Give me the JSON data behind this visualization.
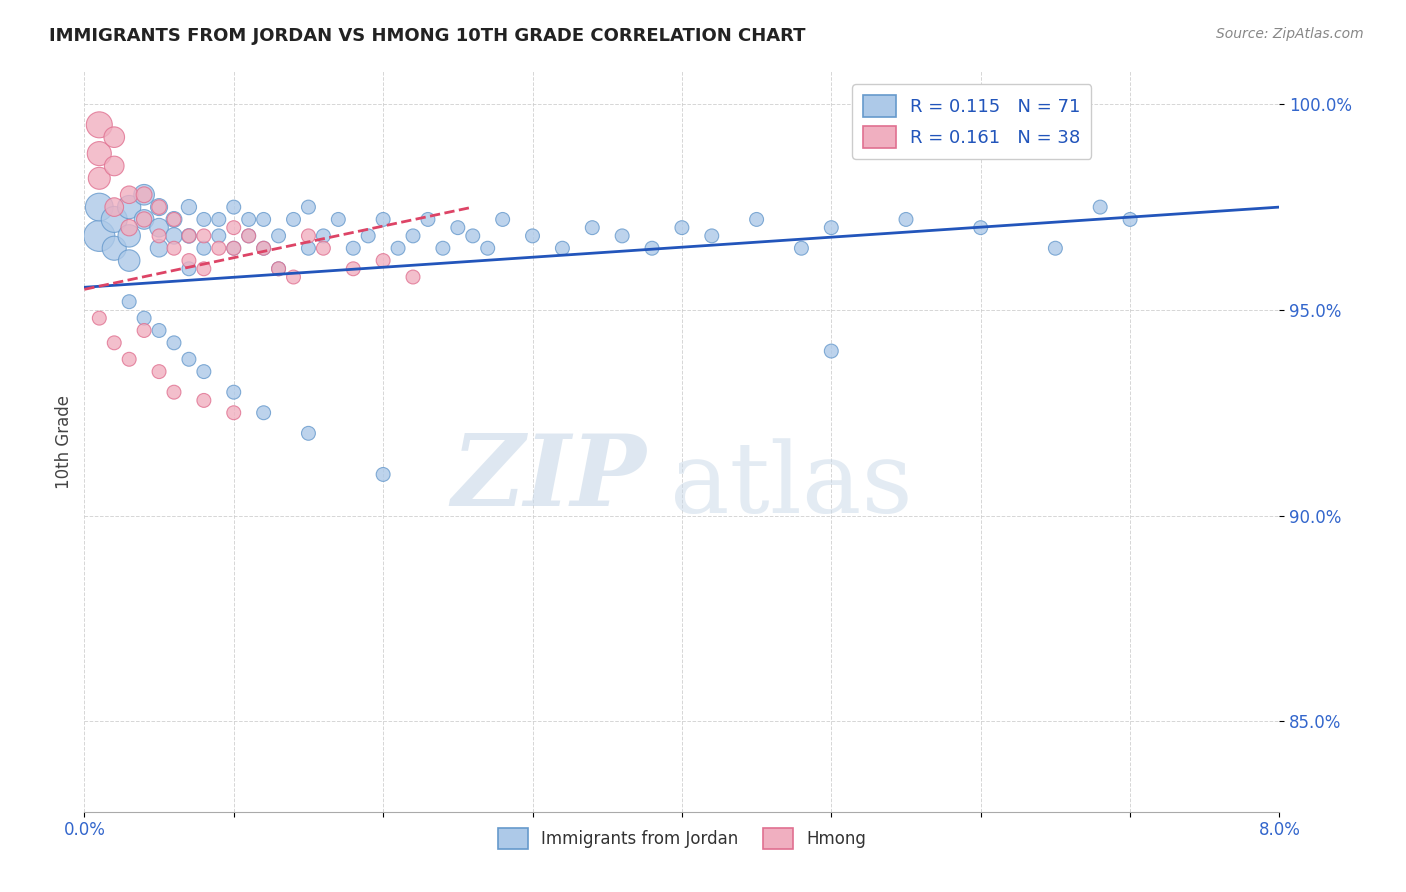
{
  "title": "IMMIGRANTS FROM JORDAN VS HMONG 10TH GRADE CORRELATION CHART",
  "source": "Source: ZipAtlas.com",
  "ylabel": "10th Grade",
  "xmin": 0.0,
  "xmax": 0.08,
  "ymin": 0.828,
  "ymax": 1.008,
  "yticks": [
    0.85,
    0.9,
    0.95,
    1.0
  ],
  "ytick_labels": [
    "85.0%",
    "90.0%",
    "95.0%",
    "100.0%"
  ],
  "grid_color": "#cccccc",
  "jordan_color": "#adc9e8",
  "jordan_edge": "#6699cc",
  "hmong_color": "#f0afc0",
  "hmong_edge": "#e07090",
  "jordan_line_color": "#2255bb",
  "hmong_line_color": "#dd4466",
  "legend_color": "#2255bb",
  "tick_color": "#3366cc",
  "title_color": "#222222",
  "watermark_zip": "ZIP",
  "watermark_atlas": "atlas",
  "watermark_color": "#c8d8e8",
  "jordan_x": [
    0.001,
    0.001,
    0.002,
    0.002,
    0.003,
    0.003,
    0.003,
    0.004,
    0.004,
    0.005,
    0.005,
    0.005,
    0.006,
    0.006,
    0.007,
    0.007,
    0.007,
    0.008,
    0.008,
    0.009,
    0.009,
    0.01,
    0.01,
    0.011,
    0.011,
    0.012,
    0.012,
    0.013,
    0.013,
    0.014,
    0.015,
    0.015,
    0.016,
    0.017,
    0.018,
    0.019,
    0.02,
    0.021,
    0.022,
    0.023,
    0.024,
    0.025,
    0.026,
    0.027,
    0.028,
    0.03,
    0.032,
    0.034,
    0.036,
    0.038,
    0.04,
    0.042,
    0.045,
    0.048,
    0.05,
    0.055,
    0.06,
    0.065,
    0.068,
    0.07,
    0.003,
    0.004,
    0.005,
    0.006,
    0.007,
    0.008,
    0.01,
    0.012,
    0.015,
    0.02,
    0.05
  ],
  "jordan_y": [
    0.968,
    0.975,
    0.972,
    0.965,
    0.975,
    0.968,
    0.962,
    0.978,
    0.972,
    0.97,
    0.965,
    0.975,
    0.968,
    0.972,
    0.975,
    0.968,
    0.96,
    0.972,
    0.965,
    0.968,
    0.972,
    0.975,
    0.965,
    0.972,
    0.968,
    0.965,
    0.972,
    0.968,
    0.96,
    0.972,
    0.975,
    0.965,
    0.968,
    0.972,
    0.965,
    0.968,
    0.972,
    0.965,
    0.968,
    0.972,
    0.965,
    0.97,
    0.968,
    0.965,
    0.972,
    0.968,
    0.965,
    0.97,
    0.968,
    0.965,
    0.97,
    0.968,
    0.972,
    0.965,
    0.97,
    0.972,
    0.97,
    0.965,
    0.975,
    0.972,
    0.952,
    0.948,
    0.945,
    0.942,
    0.938,
    0.935,
    0.93,
    0.925,
    0.92,
    0.91,
    0.94
  ],
  "jordan_sizes": [
    500,
    400,
    350,
    300,
    280,
    260,
    240,
    220,
    200,
    180,
    160,
    150,
    140,
    130,
    120,
    110,
    100,
    100,
    100,
    100,
    100,
    100,
    100,
    100,
    100,
    100,
    100,
    100,
    100,
    100,
    100,
    100,
    100,
    100,
    100,
    100,
    100,
    100,
    100,
    100,
    100,
    100,
    100,
    100,
    100,
    100,
    100,
    100,
    100,
    100,
    100,
    100,
    100,
    100,
    100,
    100,
    100,
    100,
    100,
    100,
    100,
    100,
    100,
    100,
    100,
    100,
    100,
    100,
    100,
    100,
    100
  ],
  "hmong_x": [
    0.001,
    0.001,
    0.001,
    0.002,
    0.002,
    0.002,
    0.003,
    0.003,
    0.004,
    0.004,
    0.005,
    0.005,
    0.006,
    0.006,
    0.007,
    0.007,
    0.008,
    0.008,
    0.009,
    0.01,
    0.01,
    0.011,
    0.012,
    0.013,
    0.014,
    0.015,
    0.016,
    0.018,
    0.02,
    0.022,
    0.001,
    0.002,
    0.003,
    0.004,
    0.005,
    0.006,
    0.008,
    0.01
  ],
  "hmong_y": [
    0.995,
    0.988,
    0.982,
    0.992,
    0.985,
    0.975,
    0.978,
    0.97,
    0.978,
    0.972,
    0.975,
    0.968,
    0.972,
    0.965,
    0.968,
    0.962,
    0.968,
    0.96,
    0.965,
    0.97,
    0.965,
    0.968,
    0.965,
    0.96,
    0.958,
    0.968,
    0.965,
    0.96,
    0.962,
    0.958,
    0.948,
    0.942,
    0.938,
    0.945,
    0.935,
    0.93,
    0.928,
    0.925
  ],
  "hmong_sizes": [
    350,
    300,
    250,
    220,
    200,
    180,
    160,
    140,
    130,
    120,
    110,
    100,
    100,
    100,
    100,
    100,
    100,
    100,
    100,
    100,
    100,
    100,
    100,
    100,
    100,
    100,
    100,
    100,
    100,
    100,
    100,
    100,
    100,
    100,
    100,
    100,
    100,
    100
  ],
  "jordan_line_x0": 0.0,
  "jordan_line_x1": 0.08,
  "jordan_line_y0": 0.9555,
  "jordan_line_y1": 0.975,
  "hmong_line_x0": 0.0,
  "hmong_line_x1": 0.026,
  "hmong_line_y0": 0.955,
  "hmong_line_y1": 0.975
}
